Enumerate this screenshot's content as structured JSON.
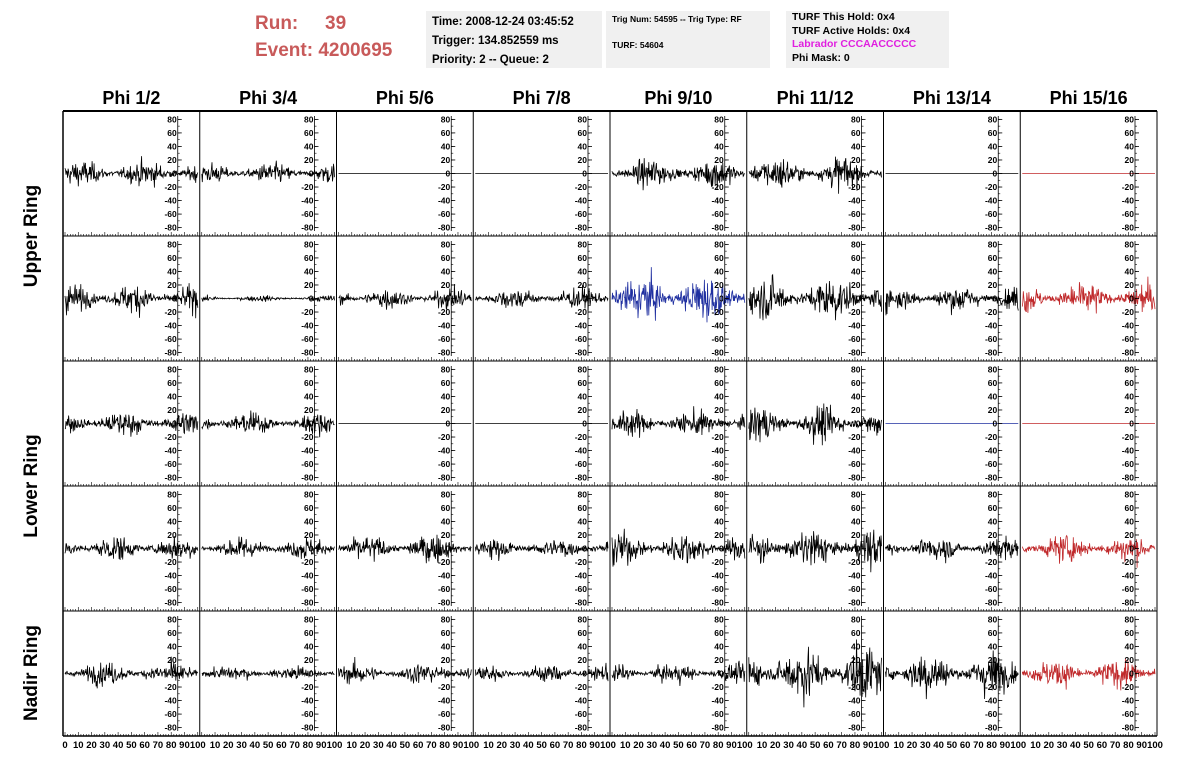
{
  "header": {
    "run_label": "Run:",
    "run_value": "39",
    "event_label": "Event:",
    "event_value": "4200695",
    "time_line": "Time: 2008-12-24 03:45:52",
    "trigger_line": "Trigger: 134.852559 ms",
    "priority_line": "Priority: 2 -- Queue: 2",
    "trig_line": "Trig Num: 54595 -- Trig Type: RF",
    "turf_line": "TURF: 54604",
    "turf_hold_line": "TURF This Hold: 0x4",
    "turf_active_line": "TURF Active Holds: 0x4",
    "labrador_line": "Labrador CCCAACCCCC",
    "phimask_line": "Phi Mask: 0"
  },
  "chart_data": {
    "type": "line",
    "columns": [
      "Phi 1/2",
      "Phi 3/4",
      "Phi 5/6",
      "Phi 7/8",
      "Phi 9/10",
      "Phi 11/12",
      "Phi 13/14",
      "Phi 15/16"
    ],
    "ring_labels": [
      "Upper Ring",
      "Lower Ring",
      "Nadir Ring"
    ],
    "ylim": [
      -85,
      85
    ],
    "y_ticks": [
      -80,
      -60,
      -40,
      -20,
      0,
      20,
      40,
      60,
      80
    ],
    "xlim": [
      0,
      100
    ],
    "x_ticks": [
      0,
      10,
      20,
      30,
      40,
      50,
      60,
      70,
      80,
      90,
      100
    ],
    "x_tick_labels_row": [
      "0",
      "10",
      "20",
      "30",
      "40",
      "50",
      "60",
      "70",
      "80",
      "90",
      "100"
    ],
    "colors": {
      "black": "#000000",
      "red": "#c0292b",
      "blue": "#1f2fa0"
    },
    "rows": [
      {
        "panels": [
          {
            "color": "black",
            "amp": 13,
            "flat": false
          },
          {
            "color": "black",
            "amp": 11,
            "flat": false
          },
          {
            "color": "black",
            "amp": 0,
            "flat": true
          },
          {
            "color": "black",
            "amp": 0,
            "flat": true
          },
          {
            "color": "black",
            "amp": 15,
            "flat": false
          },
          {
            "color": "black",
            "amp": 17,
            "flat": false
          },
          {
            "color": "black",
            "amp": 0,
            "flat": true
          },
          {
            "color": "red",
            "amp": 0,
            "flat": true
          }
        ]
      },
      {
        "panels": [
          {
            "color": "black",
            "amp": 15,
            "flat": false
          },
          {
            "color": "black",
            "amp": 3,
            "flat": false
          },
          {
            "color": "black",
            "amp": 11,
            "flat": false
          },
          {
            "color": "black",
            "amp": 11,
            "flat": false
          },
          {
            "color": "blue",
            "amp": 24,
            "flat": false
          },
          {
            "color": "black",
            "amp": 22,
            "flat": false
          },
          {
            "color": "black",
            "amp": 14,
            "flat": false
          },
          {
            "color": "red",
            "amp": 16,
            "flat": false
          }
        ]
      },
      {
        "panels": [
          {
            "color": "black",
            "amp": 13,
            "flat": false
          },
          {
            "color": "black",
            "amp": 11,
            "flat": false
          },
          {
            "color": "black",
            "amp": 0,
            "flat": true
          },
          {
            "color": "black",
            "amp": 0,
            "flat": true
          },
          {
            "color": "black",
            "amp": 13,
            "flat": false
          },
          {
            "color": "black",
            "amp": 18,
            "flat": false
          },
          {
            "color": "blue",
            "amp": 0,
            "flat": true
          },
          {
            "color": "red",
            "amp": 0,
            "flat": true
          }
        ]
      },
      {
        "panels": [
          {
            "color": "black",
            "amp": 13,
            "flat": false
          },
          {
            "color": "black",
            "amp": 11,
            "flat": false
          },
          {
            "color": "black",
            "amp": 14,
            "flat": false
          },
          {
            "color": "black",
            "amp": 11,
            "flat": false
          },
          {
            "color": "black",
            "amp": 17,
            "flat": false
          },
          {
            "color": "black",
            "amp": 20,
            "flat": false
          },
          {
            "color": "black",
            "amp": 12,
            "flat": false
          },
          {
            "color": "red",
            "amp": 14,
            "flat": false
          }
        ]
      },
      {
        "panels": [
          {
            "color": "black",
            "amp": 12,
            "flat": false
          },
          {
            "color": "black",
            "amp": 8,
            "flat": false
          },
          {
            "color": "black",
            "amp": 11,
            "flat": false
          },
          {
            "color": "black",
            "amp": 10,
            "flat": false
          },
          {
            "color": "black",
            "amp": 10,
            "flat": false
          },
          {
            "color": "black",
            "amp": 28,
            "flat": false
          },
          {
            "color": "black",
            "amp": 22,
            "flat": false
          },
          {
            "color": "red",
            "amp": 15,
            "flat": false
          }
        ]
      }
    ]
  }
}
